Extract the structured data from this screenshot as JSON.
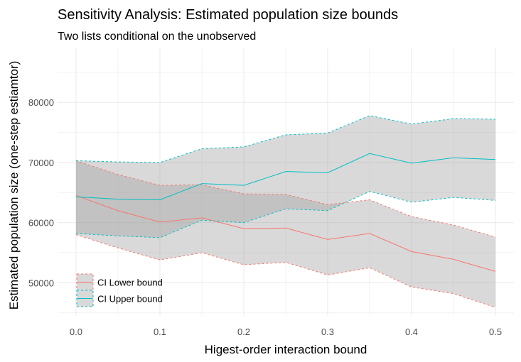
{
  "chart_data": {
    "type": "area",
    "title": "Sensitivity Analysis: Estimated population size bounds",
    "subtitle": "Two lists conditional on the unobserved",
    "xlabel": "Higest-order interaction bound",
    "ylabel": "Estimated population size (one-step estiamtor)",
    "xlim": [
      -0.022,
      0.522
    ],
    "ylim": [
      44500,
      89000
    ],
    "x": [
      0.0,
      0.05,
      0.1,
      0.15,
      0.2,
      0.25,
      0.3,
      0.35,
      0.4,
      0.45,
      0.5
    ],
    "x_ticks": [
      0.0,
      0.1,
      0.2,
      0.3,
      0.4,
      0.5
    ],
    "x_tick_labels": [
      "0.0",
      "0.1",
      "0.2",
      "0.3",
      "0.4",
      "0.5"
    ],
    "y_ticks": [
      50000,
      60000,
      70000,
      80000
    ],
    "y_tick_labels": [
      "50000",
      "60000",
      "70000",
      "80000"
    ],
    "series": [
      {
        "name": "CI Lower bound",
        "color": "#F8766D",
        "estimate": [
          64500,
          62000,
          60100,
          60800,
          59000,
          59100,
          57200,
          58200,
          55200,
          53900,
          51900
        ],
        "ci_low": [
          58000,
          55800,
          53800,
          55000,
          53000,
          53400,
          51300,
          52500,
          49300,
          48200,
          45900
        ],
        "ci_high": [
          70300,
          68000,
          66200,
          66300,
          64800,
          64700,
          63000,
          63800,
          61000,
          59600,
          57600
        ]
      },
      {
        "name": "CI Upper bound",
        "color": "#00BFC4",
        "estimate": [
          64300,
          63900,
          63800,
          66500,
          66200,
          68500,
          68300,
          71500,
          69900,
          70800,
          70500
        ],
        "ci_low": [
          58200,
          57800,
          57500,
          60400,
          60000,
          62300,
          62000,
          65200,
          63400,
          64200,
          63700
        ],
        "ci_high": [
          70300,
          70100,
          70000,
          72300,
          72600,
          74600,
          74900,
          77800,
          76400,
          77300,
          77200
        ]
      }
    ],
    "legend": [
      "CI Lower bound",
      "CI Upper bound"
    ],
    "legend_position": "bottom-left",
    "grid": true
  }
}
